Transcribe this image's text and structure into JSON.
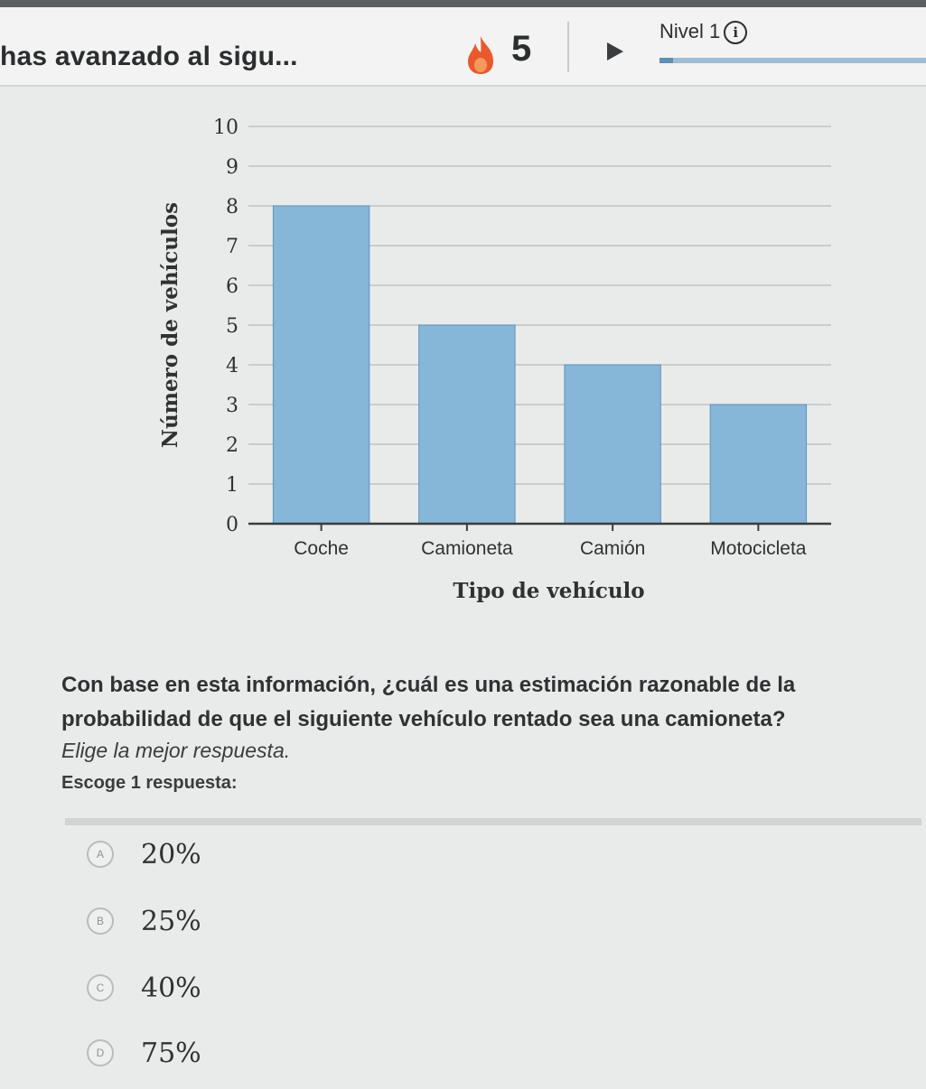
{
  "header": {
    "title": "has avanzado al sigu...",
    "streak_count": "5",
    "level_label": "Nivel 1",
    "level_progress": 0.05
  },
  "chart_data": {
    "type": "bar",
    "categories": [
      "Coche",
      "Camioneta",
      "Camión",
      "Motocicleta"
    ],
    "values": [
      8,
      5,
      4,
      3
    ],
    "title": "",
    "xlabel": "Tipo de vehículo",
    "ylabel": "Número de vehículos",
    "ylim": [
      0,
      10
    ],
    "yticks": [
      "0",
      "1",
      "2",
      "3",
      "4",
      "5",
      "6",
      "7",
      "8",
      "9",
      "10"
    ],
    "grid": true,
    "bar_color": "#86b7d8"
  },
  "question": {
    "text": "Con base en esta información, ¿cuál es una estimación razonable de la probabilidad de que el siguiente vehículo rentado sea una camioneta?",
    "instruction": "Elige la mejor respuesta.",
    "subinstruction": "Escoge 1 respuesta:"
  },
  "options": [
    {
      "marker": "A",
      "text": "20%"
    },
    {
      "marker": "B",
      "text": "25%"
    },
    {
      "marker": "C",
      "text": "40%"
    },
    {
      "marker": "D",
      "text": "75%"
    }
  ]
}
